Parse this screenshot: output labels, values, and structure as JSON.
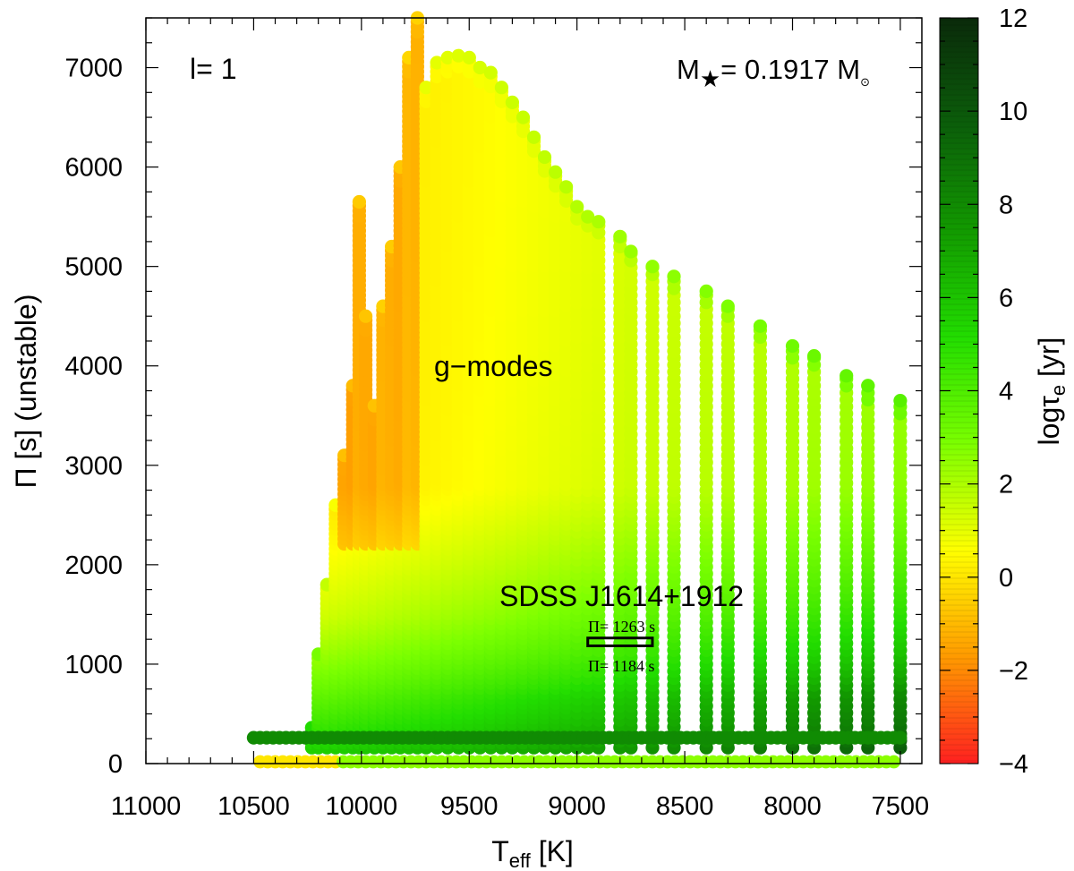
{
  "chart_data": {
    "type": "scatter",
    "title": "",
    "xlabel": {
      "base": "T",
      "sub": "eff",
      "unit": " [K]"
    },
    "ylabel": "Π [s] (unstable)",
    "xlim": [
      11000,
      7400
    ],
    "ylim": [
      0,
      7500
    ],
    "x_ticks": [
      11000,
      10500,
      10000,
      9500,
      9000,
      8500,
      8000,
      7500
    ],
    "y_ticks": [
      0,
      1000,
      2000,
      3000,
      4000,
      5000,
      6000,
      7000
    ],
    "colorbar": {
      "label": {
        "base": "logτ",
        "sub": "e",
        "unit": " [yr]"
      },
      "range": [
        -4,
        12
      ],
      "ticks": [
        -4,
        -2,
        0,
        2,
        4,
        6,
        8,
        10,
        12
      ],
      "tick_labels": [
        "−4",
        "−2",
        "0",
        "2",
        "4",
        "6",
        "8",
        "10",
        "12"
      ],
      "colors": [
        "#ff2020",
        "#ff9a00",
        "#ffff00",
        "#7cff00",
        "#22dd00",
        "#129a00",
        "#0b5e0a",
        "#0a2a0a"
      ]
    },
    "annotations": {
      "degree": "l= 1",
      "mass": {
        "prefix": "M",
        "star": "★",
        "value": "= 0.1917 M",
        "sun": "⊙"
      },
      "region": "g−modes",
      "object": "SDSS J1614+1912",
      "period_upper": "Π= 1263 s",
      "period_lower": "Π= 1184 s"
    },
    "observed_box": {
      "teff": [
        8950,
        8650
      ],
      "period": [
        1184,
        1263
      ]
    },
    "tracks_teff": [
      10230,
      10200,
      10160,
      10120,
      10080,
      10040,
      10010,
      9980,
      9940,
      9900,
      9860,
      9820,
      9780,
      9740,
      9700,
      9650,
      9600,
      9550,
      9500,
      9450,
      9400,
      9350,
      9300,
      9250,
      9200,
      9150,
      9100,
      9050,
      9000,
      8950,
      8900,
      8800,
      8750,
      8650,
      8550,
      8400,
      8300,
      8150,
      8000,
      7900,
      7750,
      7650,
      7500
    ],
    "tracks_max_period": [
      360,
      1100,
      1800,
      2600,
      3100,
      3800,
      5650,
      4500,
      3600,
      4600,
      5200,
      6000,
      7100,
      7500,
      6800,
      7050,
      7100,
      7120,
      7100,
      7000,
      6950,
      6800,
      6650,
      6500,
      6300,
      6100,
      5950,
      5800,
      5600,
      5500,
      5450,
      5300,
      5150,
      5000,
      4900,
      4750,
      4600,
      4400,
      4200,
      4100,
      3900,
      3800,
      3650
    ],
    "baseline_teff_range": [
      10500,
      7500
    ],
    "baseline_period": 260
  }
}
